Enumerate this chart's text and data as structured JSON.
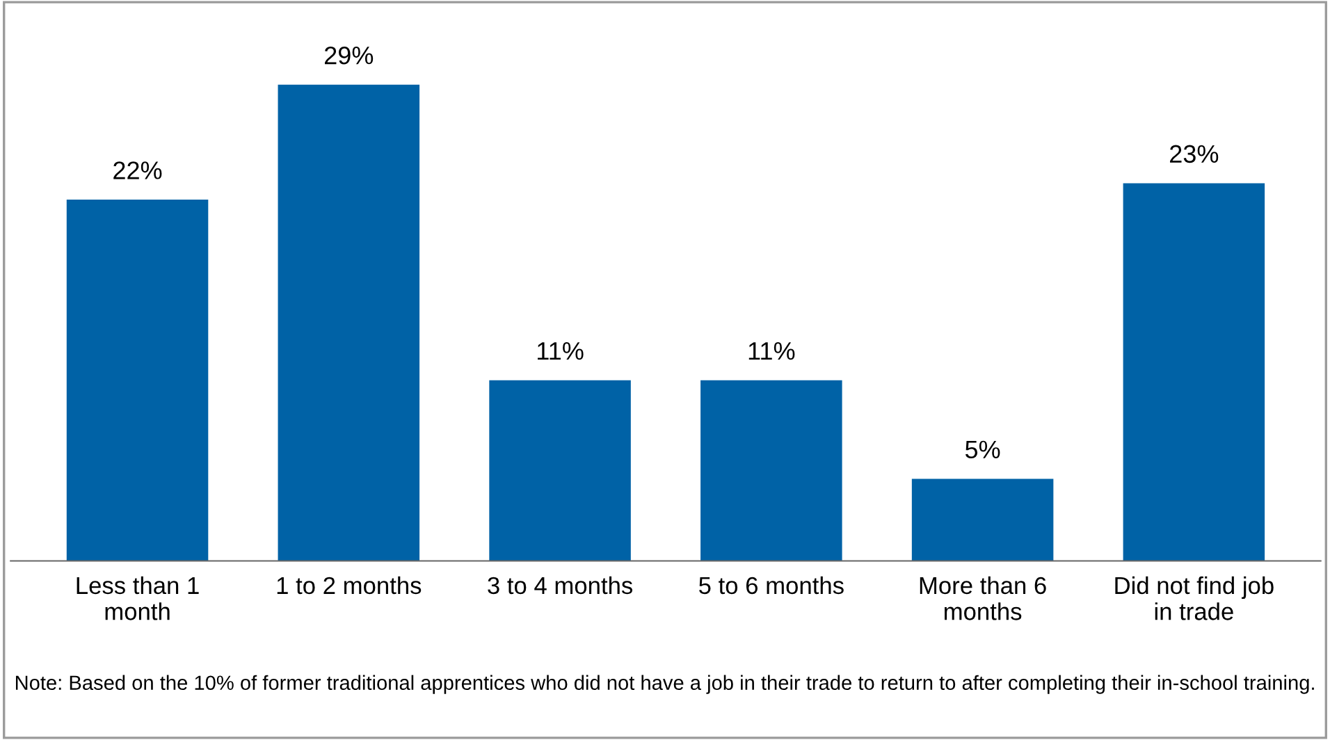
{
  "chart_data": {
    "type": "bar",
    "categories": [
      "Less than 1\nmonth",
      "1 to 2 months",
      "3 to 4 months",
      "5 to 6 months",
      "More than 6\nmonths",
      "Did not find job\nin trade"
    ],
    "values": [
      22,
      29,
      11,
      11,
      5,
      23
    ],
    "value_labels": [
      "22%",
      "29%",
      "11%",
      "11%",
      "5%",
      "23%"
    ],
    "color": "#0062a6",
    "grid": false,
    "legend": false,
    "annotations": [
      "Note: Based on the 10% of former traditional apprentices who did not have a job in their trade to return to after completing their in-school training."
    ]
  }
}
